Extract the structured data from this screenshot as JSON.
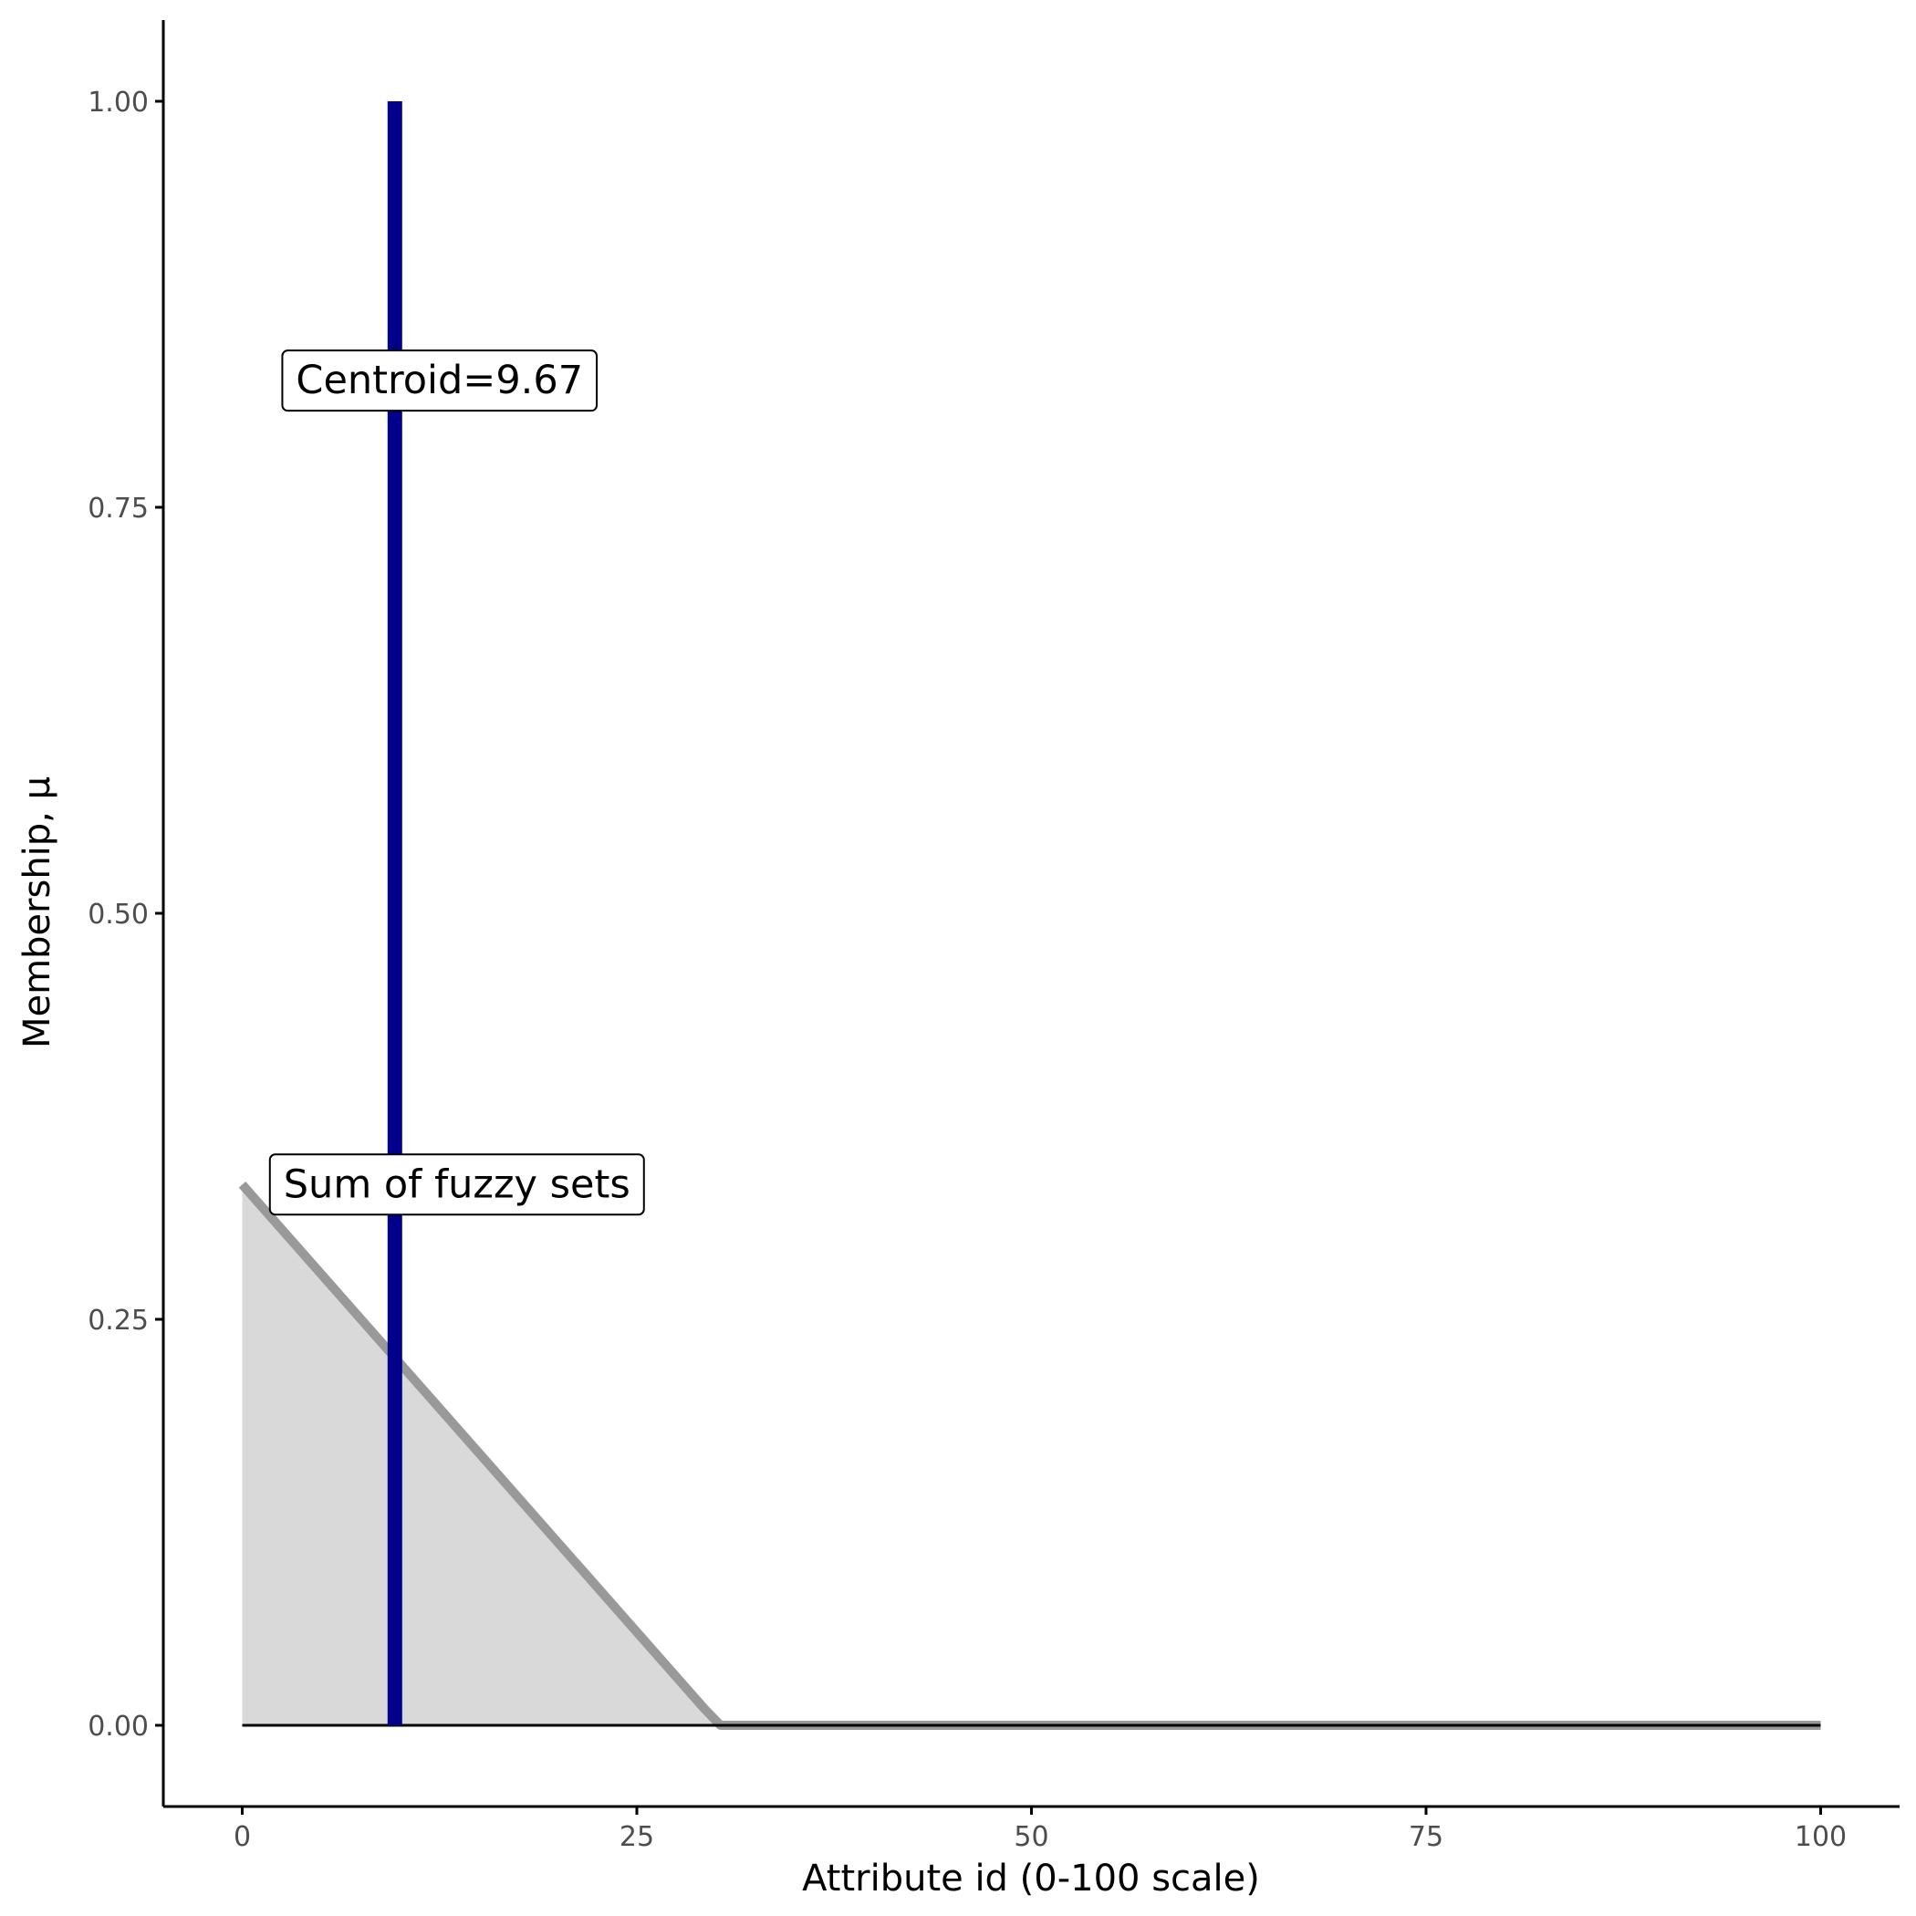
{
  "chart_data": {
    "type": "area",
    "title": "",
    "xlabel": "Attribute id (0-100 scale)",
    "ylabel": "Membership, μ",
    "xlim": [
      -5,
      105
    ],
    "ylim": [
      -0.05,
      1.05
    ],
    "x_ticks": [
      0,
      25,
      50,
      75,
      100
    ],
    "x_tick_labels": [
      "0",
      "25",
      "50",
      "75",
      "100"
    ],
    "y_ticks": [
      0,
      0.25,
      0.5,
      0.75,
      1.0
    ],
    "y_tick_labels": [
      "0.00",
      "0.25",
      "0.50",
      "0.75",
      "1.00"
    ],
    "grid": false,
    "series": [
      {
        "x": [
          0,
          29.3,
          30.3,
          100
        ],
        "y": [
          0.333,
          0.01,
          0.0,
          0.0
        ],
        "line_color": "#999999",
        "fill_color": "#d9d9d9"
      }
    ],
    "centroid": {
      "x": 9.67,
      "ymin": 0,
      "ymax": 1.0,
      "color": "#00008b"
    },
    "baseline": {
      "x": [
        0,
        100
      ],
      "y": 0,
      "color": "#000000"
    },
    "annotations": [
      {
        "text": "Centroid=9.67",
        "x": 12.5,
        "y": 0.828
      },
      {
        "text": "Sum of fuzzy sets",
        "x": 13.6,
        "y": 0.333
      }
    ]
  }
}
